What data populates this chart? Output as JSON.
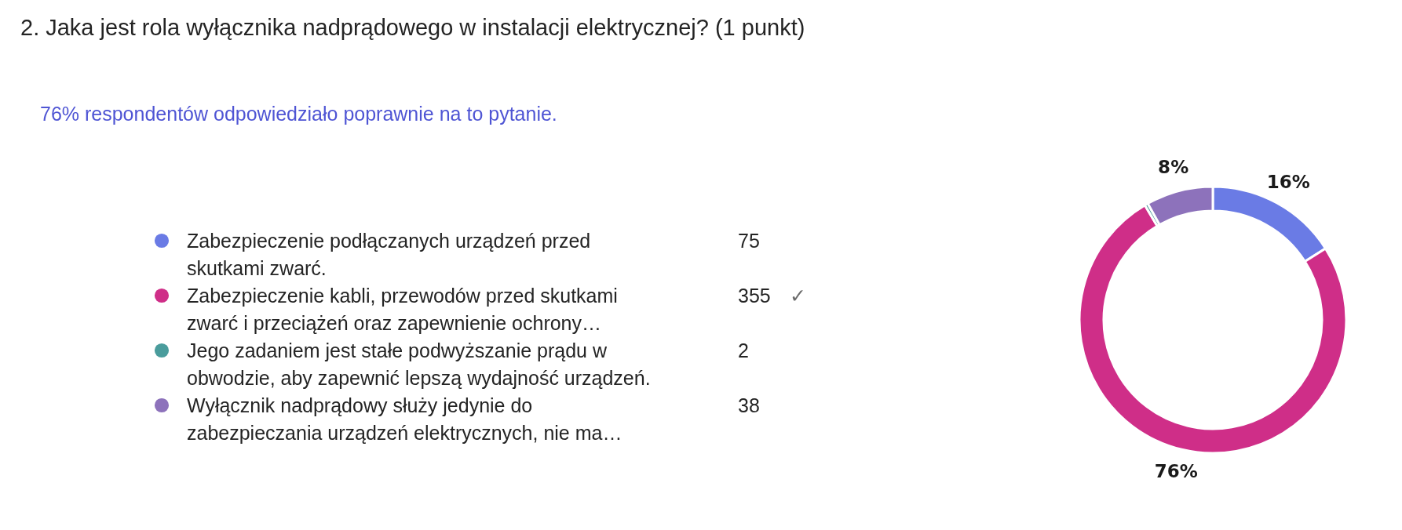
{
  "chart_data": {
    "type": "donut",
    "title": "2. Jaka jest rola wyłącznika nadprądowego w instalacji elektrycznej? (1 punkt)",
    "subtitle": "76% respondentów odpowiedziało poprawnie na to pytanie.",
    "categories": [
      "Zabezpieczenie podłączanych urządzeń przed skutkami zwarć.",
      "Zabezpieczenie kabli, przewodów przed skutkami zwarć i przeciążeń oraz zapewnienie ochrony…",
      "Jego zadaniem jest stałe podwyższanie prądu w obwodzie, aby zapewnić lepszą wydajność urządzeń.",
      "Wyłącznik nadprądowy służy jedynie do zabezpieczania urządzeń elektrycznych, nie ma…"
    ],
    "values": [
      16.0,
      75.5,
      0.4,
      8.1
    ],
    "colors": [
      "#6a7be5",
      "#cf2e88",
      "#4a9c9c",
      "#8d72bb"
    ],
    "value_labels": [
      "16%",
      "76%",
      null,
      "8%"
    ],
    "legend": "left",
    "annotations": [
      {
        "text": "75",
        "x": "Zabezpieczenie podłączanych urządzeń przed skutkami zwarć."
      },
      {
        "text": "355",
        "x": "Zabezpieczenie kabli, przewodów przed skutkami zwarć i przeciążeń oraz zapewnienie ochrony…"
      },
      {
        "text": "✓",
        "x": "Zabezpieczenie kabli, przewodów przed skutkami zwarć i przeciążeń oraz zapewnienie ochrony…"
      },
      {
        "text": "2",
        "x": "Jego zadaniem jest stałe podwyższanie prądu w obwodzie, aby zapewnić lepszą wydajność urządzeń."
      },
      {
        "text": "38",
        "x": "Wyłącznik nadprądowy służy jedynie do zabezpieczania urządzeń elektrycznych, nie ma…"
      }
    ]
  }
}
